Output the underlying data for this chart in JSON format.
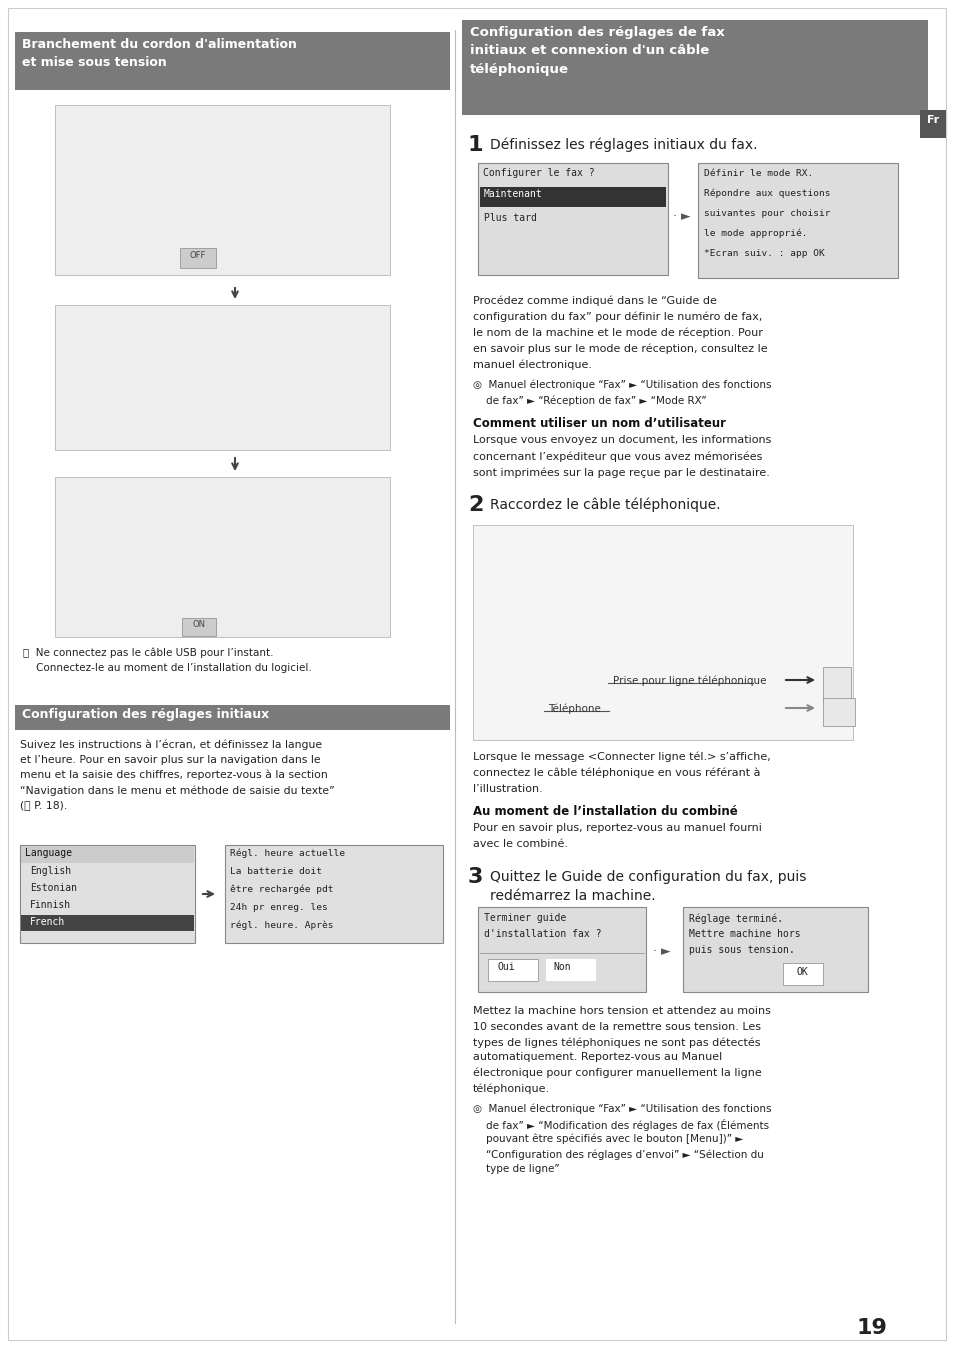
{
  "page_bg": "#ffffff",
  "page_num": "19",
  "header_bg": "#7a7a7a",
  "fr_tab_bg": "#555555",
  "left_header": "Branchement du cordon d'alimentation\net mise sous tension",
  "config_init_header": "Configuration des réglages initiaux",
  "right_header": "Configuration des réglages de fax\ninitiaux et connexion d'un câble\ntéléphonique",
  "step1_title": "Définissez les réglages initiaux du fax.",
  "step2_title": "Raccordez le câble téléphonique.",
  "step3_title": "Quittez le Guide de configuration du fax, puis\nredémarrez la machine.",
  "screen1_title": "Configurer le fax ?",
  "screen1_item1": "Maintenant",
  "screen1_item2": "Plus tard",
  "screen2_lines": [
    "Définir le mode RX.",
    "Répondre aux questions",
    "suivantes pour choisir",
    "le mode approprié.",
    "*Ecran suiv. : app OK"
  ],
  "para1_lines": [
    "Procédez comme indiqué dans le “Guide de",
    "configuration du fax” pour définir le numéro de fax,",
    "le nom de la machine et le mode de réception. Pour",
    "en savoir plus sur le mode de réception, consultez le",
    "manuel électronique."
  ],
  "ref1_line1": "◎  Manuel électronique “Fax” ► “Utilisation des fonctions",
  "ref1_line2": "    de fax” ► “Réception de fax” ► “Mode RX”",
  "bold1_title": "Comment utiliser un nom d’utilisateur",
  "bold1_lines": [
    "Lorsque vous envoyez un document, les informations",
    "concernant l’expéditeur que vous avez mémorisées",
    "sont imprimées sur la page reçue par le destinataire."
  ],
  "phone_label1": "Prise pour ligne téléphonique",
  "phone_label2": "Téléphone",
  "para2_lines": [
    "Lorsque le message <Connecter ligne tél.> s’affiche,",
    "connectez le câble téléphonique en vous référant à",
    "l’illustration."
  ],
  "bold2_title": "Au moment de l’installation du combiné",
  "bold2_lines": [
    "Pour en savoir plus, reportez-vous au manuel fourni",
    "avec le combiné."
  ],
  "screen3_title": "Terminer guide",
  "screen3_line2": "d'installation fax ?",
  "screen3_btns": "  Oui     Non",
  "screen4_line1": "Réglage terminé.",
  "screen4_line2": "Mettre machine hors",
  "screen4_line3": "puis sous tension.",
  "screen4_btn": "         OK",
  "para3_lines": [
    "Mettez la machine hors tension et attendez au moins",
    "10 secondes avant de la remettre sous tension. Les",
    "types de lignes téléphoniques ne sont pas détectés",
    "automatiquement. Reportez-vous au Manuel",
    "électronique pour configurer manuellement la ligne",
    "téléphonique."
  ],
  "ref3_lines": [
    "◎  Manuel électronique “Fax” ► “Utilisation des fonctions",
    "    de fax” ► “Modification des réglages de fax (Éléments",
    "    pouvant être spécifiés avec le bouton [Menu])” ►",
    "    “Configuration des réglages d’envoi” ► “Sélection du",
    "    type de ligne”"
  ],
  "left_note_line1": "ⓘ  Ne connectez pas le câble USB pour l’instant.",
  "left_note_line2": "    Connectez-le au moment de l’installation du logiciel.",
  "config_init_lines": [
    "Suivez les instructions à l’écran, et définissez la langue",
    "et l’heure. Pour en savoir plus sur la navigation dans le",
    "menu et la saisie des chiffres, reportez-vous à la section",
    "“Navigation dans le menu et méthode de saisie du texte”",
    "(ⓘ P. 18)."
  ],
  "lang_items": [
    "Language",
    "English",
    "Estonian",
    "Finnish",
    "French"
  ],
  "time_lines": [
    "Régl. heure actuelle",
    "La batterie doit",
    "être rechargée pdt",
    "24h pr enreg. les",
    "régl. heure. Après"
  ]
}
